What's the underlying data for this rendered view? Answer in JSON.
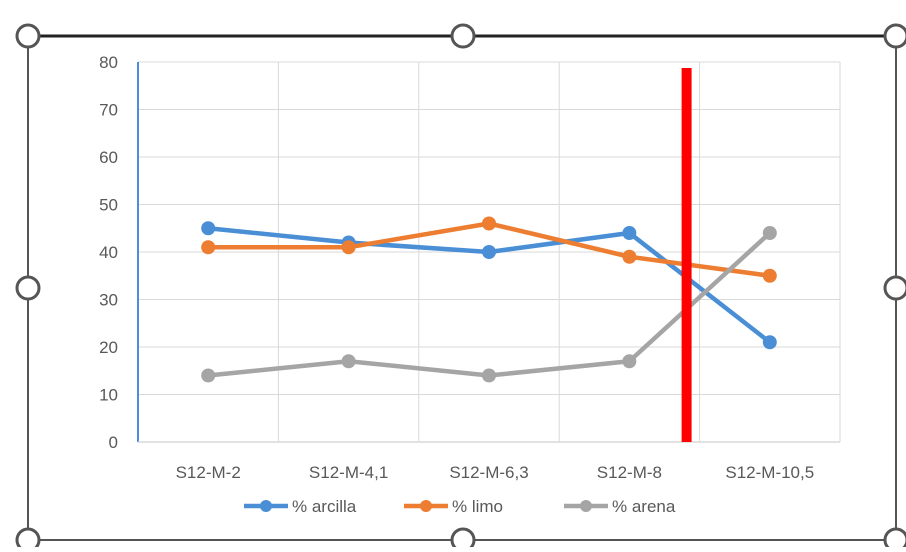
{
  "chart_data": {
    "type": "line",
    "title": "",
    "xlabel": "",
    "ylabel": "",
    "categories": [
      "S12-M-2",
      "S12-M-4,1",
      "S12-M-6,3",
      "S12-M-8",
      "S12-M-10,5"
    ],
    "ylim": [
      0,
      80
    ],
    "yticks": [
      "0",
      "10",
      "20",
      "30",
      "40",
      "50",
      "60",
      "70",
      "80"
    ],
    "grid": true,
    "legend_position": "bottom",
    "series": [
      {
        "name": "% arcilla",
        "color": "#4a8fd6",
        "values": [
          45,
          42,
          40,
          44,
          21
        ]
      },
      {
        "name": "% limo",
        "color": "#ed7d31",
        "values": [
          41,
          41,
          46,
          39,
          35
        ]
      },
      {
        "name": "% arena",
        "color": "#a5a5a5",
        "values": [
          14,
          17,
          14,
          17,
          44
        ]
      }
    ],
    "annotation": {
      "type": "vertical-bar",
      "color": "#ff0000",
      "position_between": [
        "S12-M-8",
        "S12-M-10,5"
      ]
    }
  }
}
